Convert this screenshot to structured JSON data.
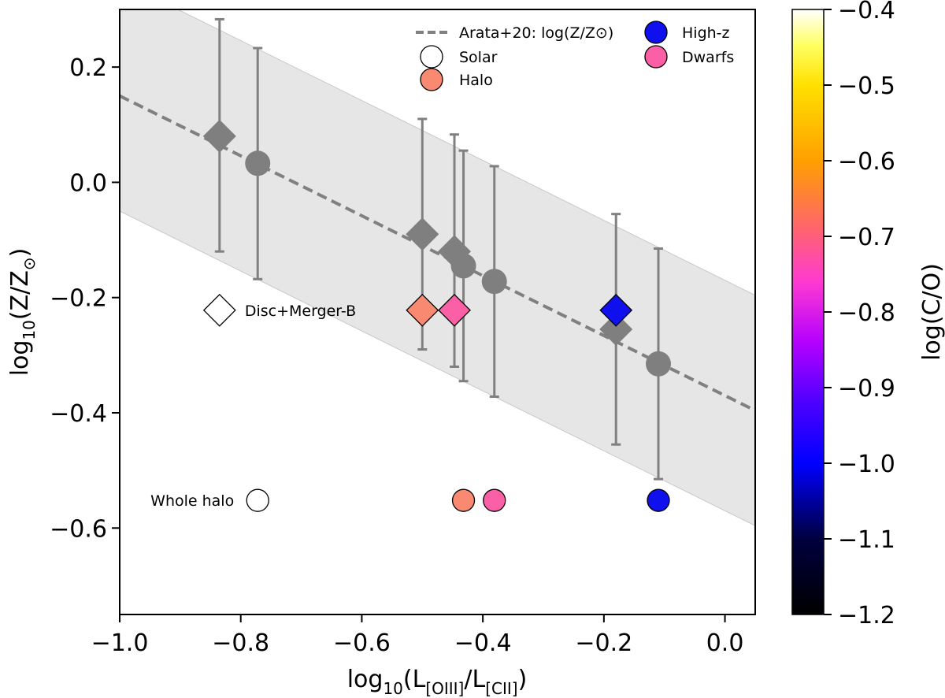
{
  "chart_data": {
    "type": "scatter",
    "title": "",
    "xlim": [
      -1.0,
      0.05
    ],
    "ylim": [
      -0.75,
      0.3
    ],
    "x_ticks": [
      -1.0,
      -0.8,
      -0.6,
      -0.4,
      -0.2,
      0.0
    ],
    "x_tick_labels": [
      "−1.0",
      "−0.8",
      "−0.6",
      "−0.4",
      "−0.2",
      "0.0"
    ],
    "y_ticks": [
      0.2,
      0.0,
      -0.2,
      -0.4,
      -0.6
    ],
    "y_tick_labels": [
      "0.2",
      "0.0",
      "−0.2",
      "−0.4",
      "−0.6"
    ],
    "xlabel": {
      "prefix": "log",
      "base": "10",
      "open": "(L",
      "sub1": "[OIII]",
      "mid": "/L",
      "sub2": "[CII]",
      "close": ")"
    },
    "ylabel": {
      "prefix": "log",
      "base": "10",
      "open": "(Z/Z",
      "sun": "⊙",
      "close": ")"
    },
    "fit_line": {
      "slope": -0.52,
      "intercept": -0.37,
      "band_halfwidth": 0.2,
      "legend": "Arata+20: log(Z/Z⊙)"
    },
    "gray_diamonds": [
      {
        "x": -0.835,
        "y": 0.08,
        "y_low": -0.12,
        "y_high": 0.283
      },
      {
        "x": -0.5,
        "y": -0.09,
        "y_low": -0.29,
        "y_high": 0.11
      },
      {
        "x": -0.447,
        "y": -0.12,
        "y_low": -0.32,
        "y_high": 0.083
      },
      {
        "x": -0.18,
        "y": -0.255,
        "y_low": -0.455,
        "y_high": -0.055
      }
    ],
    "gray_circles": [
      {
        "x": -0.772,
        "y": 0.033,
        "y_low": -0.168,
        "y_high": 0.233
      },
      {
        "x": -0.432,
        "y": -0.145,
        "y_low": -0.345,
        "y_high": 0.055
      },
      {
        "x": -0.381,
        "y": -0.172,
        "y_low": -0.372,
        "y_high": 0.028
      },
      {
        "x": -0.11,
        "y": -0.315,
        "y_low": -0.515,
        "y_high": -0.115
      }
    ],
    "colored_diamonds": [
      {
        "x": -0.835,
        "y": -0.222,
        "color": "#ffffff"
      },
      {
        "x": -0.5,
        "y": -0.222,
        "color": "#f98a71"
      },
      {
        "x": -0.447,
        "y": -0.222,
        "color": "#fb5fa5"
      },
      {
        "x": -0.18,
        "y": -0.222,
        "color": "#1010ee"
      }
    ],
    "colored_circles": [
      {
        "x": -0.772,
        "y": -0.552,
        "color": "#ffffff"
      },
      {
        "x": -0.432,
        "y": -0.552,
        "color": "#f98a71"
      },
      {
        "x": -0.381,
        "y": -0.552,
        "color": "#fb5fa5"
      },
      {
        "x": -0.11,
        "y": -0.552,
        "color": "#1010ee"
      }
    ],
    "annotations": [
      {
        "text": "Disc+Merger-B",
        "x": -0.835,
        "y": -0.222
      },
      {
        "text": "Whole halo",
        "x": -0.772,
        "y": -0.552
      }
    ],
    "legend": [
      {
        "label": "Arata+20: log(Z/Z⊙)",
        "marker": "dashed-line",
        "color": "#808080"
      },
      {
        "label": "Solar",
        "marker": "circle",
        "color": "#ffffff"
      },
      {
        "label": "Halo",
        "marker": "circle",
        "color": "#f98a71"
      },
      {
        "label": "High-z",
        "marker": "circle",
        "color": "#1010ee"
      },
      {
        "label": "Dwarfs",
        "marker": "circle",
        "color": "#fb5fa5"
      }
    ],
    "legend_placement": "top-right",
    "colorbar": {
      "label": "log(C/O)",
      "cmap": "gnuplot2",
      "range": [
        -1.2,
        -0.4
      ],
      "ticks": [
        -0.4,
        -0.5,
        -0.6,
        -0.7,
        -0.8,
        -0.9,
        -1.0,
        -1.1,
        -1.2
      ],
      "tick_labels": [
        "−0.4",
        "−0.5",
        "−0.6",
        "−0.7",
        "−0.8",
        "−0.9",
        "−1.0",
        "−1.1",
        "−1.2"
      ]
    },
    "colors": {
      "gray_marker": "#7f7f7f",
      "band": "#e6e6e6",
      "errorbar": "#808080"
    }
  }
}
